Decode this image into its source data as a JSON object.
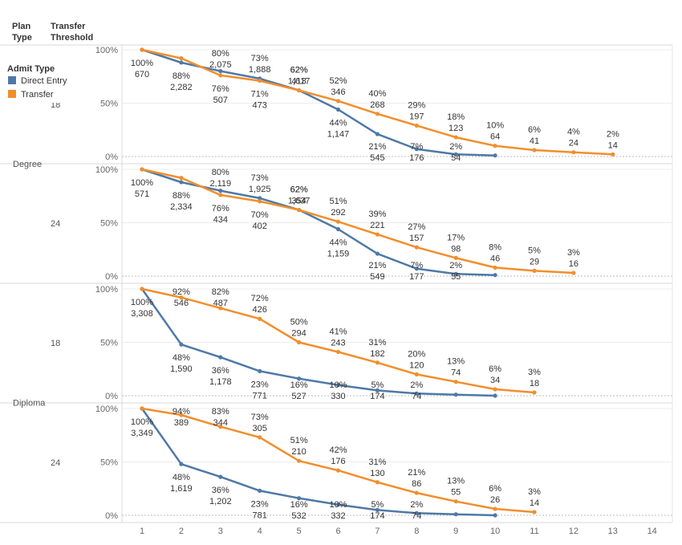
{
  "header": {
    "plan_type": [
      "Plan",
      "Type"
    ],
    "transfer_threshold": [
      "Transfer",
      "Threshold"
    ]
  },
  "legend": {
    "title": "Admit Type",
    "items": [
      {
        "label": "Direct Entry",
        "color": "#4e79a7"
      },
      {
        "label": "Transfer",
        "color": "#f28e2b"
      }
    ]
  },
  "chart_data": {
    "type": "line",
    "x_ticks": [
      1,
      2,
      3,
      4,
      5,
      6,
      7,
      8,
      9,
      10,
      11,
      12,
      13,
      14
    ],
    "y_ticks": [
      "0%",
      "50%",
      "100%"
    ],
    "ylim": [
      0,
      100
    ],
    "grid": true,
    "legend_position": "left",
    "panels": [
      {
        "plan_type": "Degree",
        "threshold": "18",
        "series": [
          {
            "name": "Direct Entry",
            "x": [
              1,
              2,
              3,
              4,
              5,
              6,
              7,
              8,
              9,
              10
            ],
            "pct": [
              100,
              88,
              80,
              73,
              62,
              44,
              21,
              7,
              2,
              1
            ],
            "labels": [
              [
                "100%",
                "670"
              ],
              [
                "88%",
                "2,282"
              ],
              [
                "80%",
                "2,075"
              ],
              [
                "73%",
                "1,888"
              ],
              [
                "62%",
                "1,617"
              ],
              [
                "44%",
                "1,147"
              ],
              [
                "21%",
                "545"
              ],
              [
                "7%",
                "176"
              ],
              [
                "2%",
                "54"
              ],
              null
            ]
          },
          {
            "name": "Transfer",
            "x": [
              1,
              2,
              3,
              4,
              5,
              6,
              7,
              8,
              9,
              10,
              11,
              12,
              13
            ],
            "pct": [
              100,
              92,
              76,
              71,
              62,
              52,
              40,
              29,
              18,
              10,
              6,
              4,
              2
            ],
            "labels": [
              null,
              null,
              [
                "76%",
                "507"
              ],
              [
                "71%",
                "473"
              ],
              [
                "62%",
                "413"
              ],
              [
                "52%",
                "346"
              ],
              [
                "40%",
                "268"
              ],
              [
                "29%",
                "197"
              ],
              [
                "18%",
                "123"
              ],
              [
                "10%",
                "64"
              ],
              [
                "6%",
                "41"
              ],
              [
                "4%",
                "24"
              ],
              [
                "2%",
                "14"
              ]
            ]
          }
        ]
      },
      {
        "plan_type": "Degree",
        "threshold": "24",
        "series": [
          {
            "name": "Direct Entry",
            "x": [
              1,
              2,
              3,
              4,
              5,
              6,
              7,
              8,
              9,
              10
            ],
            "pct": [
              100,
              88,
              80,
              73,
              62,
              44,
              21,
              7,
              2,
              1
            ],
            "labels": [
              [
                "100%",
                "571"
              ],
              [
                "88%",
                "2,334"
              ],
              [
                "80%",
                "2,119"
              ],
              [
                "73%",
                "1,925"
              ],
              [
                "62%",
                "1,637"
              ],
              [
                "44%",
                "1,159"
              ],
              [
                "21%",
                "549"
              ],
              [
                "7%",
                "177"
              ],
              [
                "2%",
                "55"
              ],
              null
            ]
          },
          {
            "name": "Transfer",
            "x": [
              1,
              2,
              3,
              4,
              5,
              6,
              7,
              8,
              9,
              10,
              11,
              12
            ],
            "pct": [
              100,
              92,
              76,
              70,
              62,
              51,
              39,
              27,
              17,
              8,
              5,
              3
            ],
            "labels": [
              null,
              null,
              [
                "76%",
                "434"
              ],
              [
                "70%",
                "402"
              ],
              [
                "62%",
                "354"
              ],
              [
                "51%",
                "292"
              ],
              [
                "39%",
                "221"
              ],
              [
                "27%",
                "157"
              ],
              [
                "17%",
                "98"
              ],
              [
                "8%",
                "46"
              ],
              [
                "5%",
                "29"
              ],
              [
                "3%",
                "16"
              ]
            ]
          }
        ]
      },
      {
        "plan_type": "Diploma",
        "threshold": "18",
        "series": [
          {
            "name": "Direct Entry",
            "x": [
              1,
              2,
              3,
              4,
              5,
              6,
              7,
              8,
              9,
              10
            ],
            "pct": [
              100,
              48,
              36,
              23,
              16,
              10,
              5,
              2,
              1,
              0
            ],
            "labels": [
              [
                "100%",
                "3,308"
              ],
              [
                "48%",
                "1,590"
              ],
              [
                "36%",
                "1,178"
              ],
              [
                "23%",
                "771"
              ],
              [
                "16%",
                "527"
              ],
              [
                "10%",
                "330"
              ],
              [
                "5%",
                "174"
              ],
              [
                "2%",
                "74"
              ],
              null,
              null
            ]
          },
          {
            "name": "Transfer",
            "x": [
              1,
              2,
              3,
              4,
              5,
              6,
              7,
              8,
              9,
              10,
              11
            ],
            "pct": [
              100,
              92,
              82,
              72,
              50,
              41,
              31,
              20,
              13,
              6,
              3
            ],
            "labels": [
              null,
              [
                "92%",
                "546"
              ],
              [
                "82%",
                "487"
              ],
              [
                "72%",
                "426"
              ],
              [
                "50%",
                "294"
              ],
              [
                "41%",
                "243"
              ],
              [
                "31%",
                "182"
              ],
              [
                "20%",
                "120"
              ],
              [
                "13%",
                "74"
              ],
              [
                "6%",
                "34"
              ],
              [
                "3%",
                "18"
              ]
            ]
          }
        ]
      },
      {
        "plan_type": "Diploma",
        "threshold": "24",
        "series": [
          {
            "name": "Direct Entry",
            "x": [
              1,
              2,
              3,
              4,
              5,
              6,
              7,
              8,
              9,
              10
            ],
            "pct": [
              100,
              48,
              36,
              23,
              16,
              10,
              5,
              2,
              1,
              0
            ],
            "labels": [
              [
                "100%",
                "3,349"
              ],
              [
                "48%",
                "1,619"
              ],
              [
                "36%",
                "1,202"
              ],
              [
                "23%",
                "781"
              ],
              [
                "16%",
                "532"
              ],
              [
                "10%",
                "332"
              ],
              [
                "5%",
                "174"
              ],
              [
                "2%",
                "74"
              ],
              null,
              null
            ]
          },
          {
            "name": "Transfer",
            "x": [
              1,
              2,
              3,
              4,
              5,
              6,
              7,
              8,
              9,
              10,
              11
            ],
            "pct": [
              100,
              94,
              83,
              73,
              51,
              42,
              31,
              21,
              13,
              6,
              3
            ],
            "labels": [
              null,
              [
                "94%",
                "389"
              ],
              [
                "83%",
                "344"
              ],
              [
                "73%",
                "305"
              ],
              [
                "51%",
                "210"
              ],
              [
                "42%",
                "176"
              ],
              [
                "31%",
                "130"
              ],
              [
                "21%",
                "86"
              ],
              [
                "13%",
                "55"
              ],
              [
                "6%",
                "26"
              ],
              [
                "3%",
                "14"
              ]
            ]
          }
        ]
      }
    ]
  }
}
